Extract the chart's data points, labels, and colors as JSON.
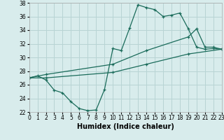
{
  "xlabel": "Humidex (Indice chaleur)",
  "bg_color": "#d8ecec",
  "grid_color": "#b8d4d4",
  "line_color": "#1a6b5a",
  "xlim": [
    0,
    23
  ],
  "ylim": [
    22,
    38
  ],
  "xtick_vals": [
    0,
    1,
    2,
    3,
    4,
    5,
    6,
    7,
    8,
    9,
    10,
    11,
    12,
    13,
    14,
    15,
    16,
    17,
    18,
    19,
    20,
    21,
    22,
    23
  ],
  "ytick_vals": [
    22,
    24,
    26,
    28,
    30,
    32,
    34,
    36,
    38
  ],
  "line1_x": [
    0,
    1,
    2,
    3,
    4,
    5,
    6,
    7,
    8,
    9,
    10,
    11,
    12,
    13,
    14,
    15,
    16,
    17,
    18,
    19,
    20,
    21,
    22,
    23
  ],
  "line1_y": [
    27.0,
    27.3,
    26.7,
    25.2,
    24.8,
    23.5,
    22.5,
    22.2,
    22.3,
    25.3,
    31.3,
    31.0,
    34.3,
    37.7,
    37.3,
    37.0,
    36.0,
    36.2,
    36.5,
    34.2,
    31.5,
    31.2,
    31.3,
    31.2
  ],
  "line2_x": [
    0,
    2,
    10,
    14,
    19,
    20,
    21,
    22,
    23
  ],
  "line2_y": [
    27.0,
    27.5,
    29.0,
    31.0,
    33.0,
    34.2,
    31.5,
    31.5,
    31.2
  ],
  "line3_x": [
    0,
    2,
    10,
    14,
    19,
    23
  ],
  "line3_y": [
    27.0,
    27.0,
    27.8,
    29.0,
    30.5,
    31.2
  ]
}
